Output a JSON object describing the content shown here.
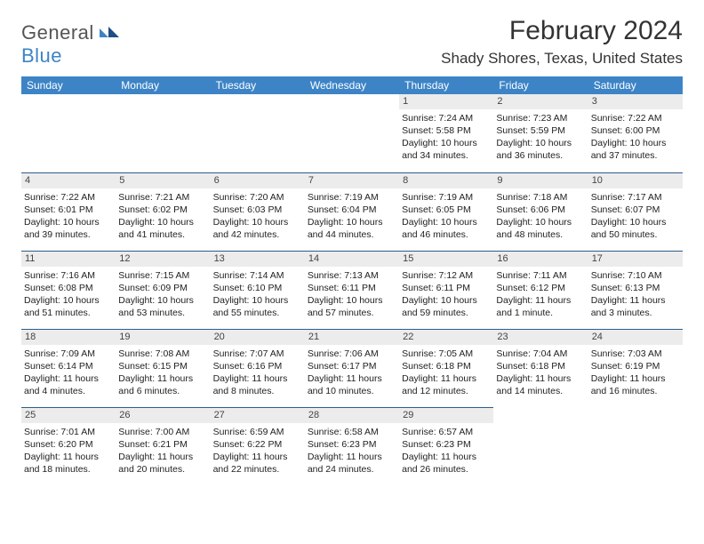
{
  "logo": {
    "word1": "General",
    "word2": "Blue"
  },
  "title": "February 2024",
  "location": "Shady Shores, Texas, United States",
  "header_bg": "#3d84c6",
  "header_fg": "#ffffff",
  "strip_bg": "#ececec",
  "strip_border": "#2b5e8c",
  "day_names": [
    "Sunday",
    "Monday",
    "Tuesday",
    "Wednesday",
    "Thursday",
    "Friday",
    "Saturday"
  ],
  "weeks": [
    [
      null,
      null,
      null,
      null,
      {
        "n": "1",
        "sr": "Sunrise: 7:24 AM",
        "ss": "Sunset: 5:58 PM",
        "dl": "Daylight: 10 hours and 34 minutes."
      },
      {
        "n": "2",
        "sr": "Sunrise: 7:23 AM",
        "ss": "Sunset: 5:59 PM",
        "dl": "Daylight: 10 hours and 36 minutes."
      },
      {
        "n": "3",
        "sr": "Sunrise: 7:22 AM",
        "ss": "Sunset: 6:00 PM",
        "dl": "Daylight: 10 hours and 37 minutes."
      }
    ],
    [
      {
        "n": "4",
        "sr": "Sunrise: 7:22 AM",
        "ss": "Sunset: 6:01 PM",
        "dl": "Daylight: 10 hours and 39 minutes."
      },
      {
        "n": "5",
        "sr": "Sunrise: 7:21 AM",
        "ss": "Sunset: 6:02 PM",
        "dl": "Daylight: 10 hours and 41 minutes."
      },
      {
        "n": "6",
        "sr": "Sunrise: 7:20 AM",
        "ss": "Sunset: 6:03 PM",
        "dl": "Daylight: 10 hours and 42 minutes."
      },
      {
        "n": "7",
        "sr": "Sunrise: 7:19 AM",
        "ss": "Sunset: 6:04 PM",
        "dl": "Daylight: 10 hours and 44 minutes."
      },
      {
        "n": "8",
        "sr": "Sunrise: 7:19 AM",
        "ss": "Sunset: 6:05 PM",
        "dl": "Daylight: 10 hours and 46 minutes."
      },
      {
        "n": "9",
        "sr": "Sunrise: 7:18 AM",
        "ss": "Sunset: 6:06 PM",
        "dl": "Daylight: 10 hours and 48 minutes."
      },
      {
        "n": "10",
        "sr": "Sunrise: 7:17 AM",
        "ss": "Sunset: 6:07 PM",
        "dl": "Daylight: 10 hours and 50 minutes."
      }
    ],
    [
      {
        "n": "11",
        "sr": "Sunrise: 7:16 AM",
        "ss": "Sunset: 6:08 PM",
        "dl": "Daylight: 10 hours and 51 minutes."
      },
      {
        "n": "12",
        "sr": "Sunrise: 7:15 AM",
        "ss": "Sunset: 6:09 PM",
        "dl": "Daylight: 10 hours and 53 minutes."
      },
      {
        "n": "13",
        "sr": "Sunrise: 7:14 AM",
        "ss": "Sunset: 6:10 PM",
        "dl": "Daylight: 10 hours and 55 minutes."
      },
      {
        "n": "14",
        "sr": "Sunrise: 7:13 AM",
        "ss": "Sunset: 6:11 PM",
        "dl": "Daylight: 10 hours and 57 minutes."
      },
      {
        "n": "15",
        "sr": "Sunrise: 7:12 AM",
        "ss": "Sunset: 6:11 PM",
        "dl": "Daylight: 10 hours and 59 minutes."
      },
      {
        "n": "16",
        "sr": "Sunrise: 7:11 AM",
        "ss": "Sunset: 6:12 PM",
        "dl": "Daylight: 11 hours and 1 minute."
      },
      {
        "n": "17",
        "sr": "Sunrise: 7:10 AM",
        "ss": "Sunset: 6:13 PM",
        "dl": "Daylight: 11 hours and 3 minutes."
      }
    ],
    [
      {
        "n": "18",
        "sr": "Sunrise: 7:09 AM",
        "ss": "Sunset: 6:14 PM",
        "dl": "Daylight: 11 hours and 4 minutes."
      },
      {
        "n": "19",
        "sr": "Sunrise: 7:08 AM",
        "ss": "Sunset: 6:15 PM",
        "dl": "Daylight: 11 hours and 6 minutes."
      },
      {
        "n": "20",
        "sr": "Sunrise: 7:07 AM",
        "ss": "Sunset: 6:16 PM",
        "dl": "Daylight: 11 hours and 8 minutes."
      },
      {
        "n": "21",
        "sr": "Sunrise: 7:06 AM",
        "ss": "Sunset: 6:17 PM",
        "dl": "Daylight: 11 hours and 10 minutes."
      },
      {
        "n": "22",
        "sr": "Sunrise: 7:05 AM",
        "ss": "Sunset: 6:18 PM",
        "dl": "Daylight: 11 hours and 12 minutes."
      },
      {
        "n": "23",
        "sr": "Sunrise: 7:04 AM",
        "ss": "Sunset: 6:18 PM",
        "dl": "Daylight: 11 hours and 14 minutes."
      },
      {
        "n": "24",
        "sr": "Sunrise: 7:03 AM",
        "ss": "Sunset: 6:19 PM",
        "dl": "Daylight: 11 hours and 16 minutes."
      }
    ],
    [
      {
        "n": "25",
        "sr": "Sunrise: 7:01 AM",
        "ss": "Sunset: 6:20 PM",
        "dl": "Daylight: 11 hours and 18 minutes."
      },
      {
        "n": "26",
        "sr": "Sunrise: 7:00 AM",
        "ss": "Sunset: 6:21 PM",
        "dl": "Daylight: 11 hours and 20 minutes."
      },
      {
        "n": "27",
        "sr": "Sunrise: 6:59 AM",
        "ss": "Sunset: 6:22 PM",
        "dl": "Daylight: 11 hours and 22 minutes."
      },
      {
        "n": "28",
        "sr": "Sunrise: 6:58 AM",
        "ss": "Sunset: 6:23 PM",
        "dl": "Daylight: 11 hours and 24 minutes."
      },
      {
        "n": "29",
        "sr": "Sunrise: 6:57 AM",
        "ss": "Sunset: 6:23 PM",
        "dl": "Daylight: 11 hours and 26 minutes."
      },
      null,
      null
    ]
  ]
}
